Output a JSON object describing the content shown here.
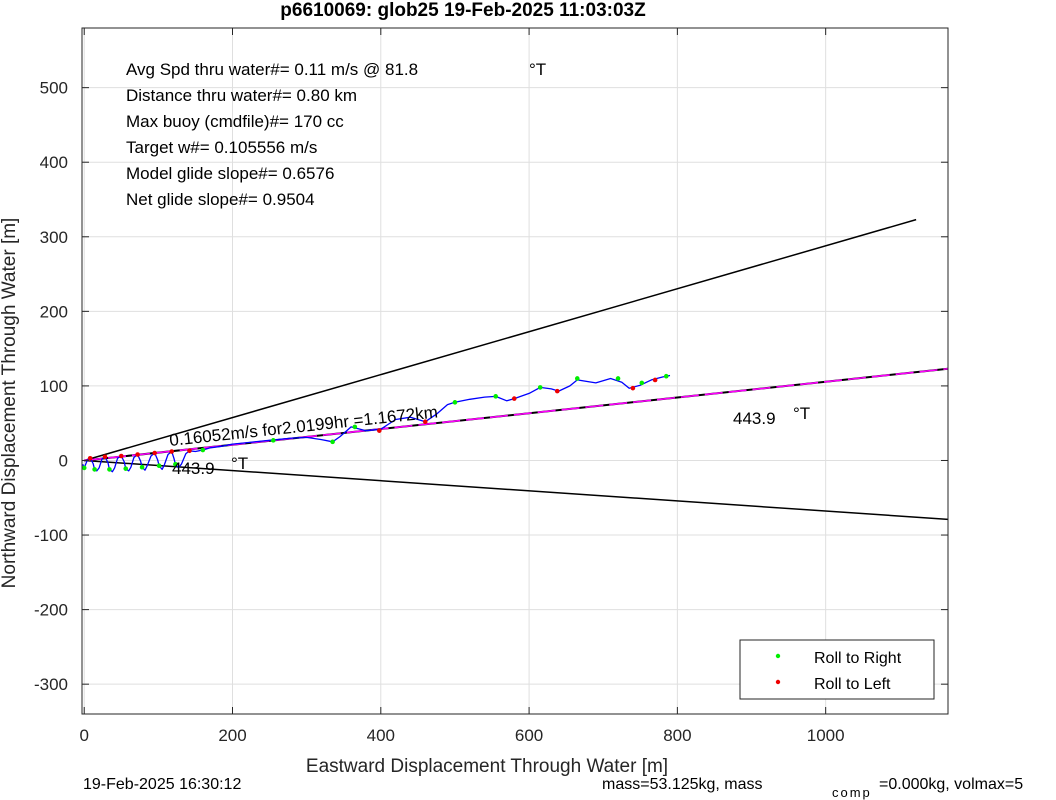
{
  "chart_data": {
    "type": "line",
    "title": "p6610069: glob25 19-Feb-2025 11:03:03Z",
    "xlabel": "Eastward Displacement Through Water [m]",
    "ylabel": "Northward Displacement Through Water [m]",
    "xlim": [
      -3,
      1165
    ],
    "ylim": [
      -340,
      580
    ],
    "xticks": [
      0,
      200,
      400,
      600,
      800,
      1000
    ],
    "yticks": [
      -300,
      -200,
      -100,
      0,
      100,
      200,
      300,
      400,
      500
    ],
    "xtick_labels": [
      "0",
      "200",
      "400",
      "600",
      "800",
      "1000"
    ],
    "ytick_labels": [
      "-300",
      "-200",
      "-100",
      "0",
      "100",
      "200",
      "300",
      "400",
      "500"
    ],
    "grid": true,
    "legend_position": "bottom-right",
    "legend": [
      {
        "label": "Roll to Right",
        "color": "#00ee00"
      },
      {
        "label": "Roll to Left",
        "color": "#ee0000"
      }
    ],
    "stats": [
      "Avg Spd thru water#=  0.11 m/s @  81.8",
      "Distance thru water#=  0.80 km",
      "Max buoy (cmdfile)#= 170 cc",
      "Target w#= 0.105556 m/s",
      "Model glide slope#= 0.6576",
      "Net glide slope#= 0.9504"
    ],
    "stats_unit": "°T",
    "annotations": {
      "current": "0.16052m/s for2.0199hr =1.1672km",
      "heading_right": "443.9",
      "heading_left": "443.9",
      "deg_unit": "°T"
    },
    "lines": {
      "upper_bound": [
        [
          0,
          0
        ],
        [
          1122,
          323
        ]
      ],
      "lower_bound": [
        [
          0,
          0
        ],
        [
          1165,
          -79
        ]
      ],
      "current_line": [
        [
          0,
          0
        ],
        [
          1165,
          123
        ]
      ]
    },
    "track": [
      [
        -2,
        -5
      ],
      [
        0,
        -10
      ],
      [
        4,
        0
      ],
      [
        8,
        3
      ],
      [
        12,
        -4
      ],
      [
        14,
        -12
      ],
      [
        17,
        -14
      ],
      [
        20,
        -10
      ],
      [
        24,
        2
      ],
      [
        28,
        5
      ],
      [
        32,
        -3
      ],
      [
        34,
        -12
      ],
      [
        38,
        -15
      ],
      [
        41,
        -10
      ],
      [
        45,
        3
      ],
      [
        50,
        6
      ],
      [
        54,
        -2
      ],
      [
        56,
        -11
      ],
      [
        60,
        -14
      ],
      [
        63,
        -9
      ],
      [
        67,
        4
      ],
      [
        72,
        8
      ],
      [
        76,
        -1
      ],
      [
        78,
        -9
      ],
      [
        82,
        -13
      ],
      [
        85,
        -7
      ],
      [
        90,
        6
      ],
      [
        95,
        10
      ],
      [
        99,
        1
      ],
      [
        101,
        -7
      ],
      [
        105,
        -12
      ],
      [
        108,
        -6
      ],
      [
        113,
        8
      ],
      [
        118,
        12
      ],
      [
        121,
        3
      ],
      [
        123,
        -5
      ],
      [
        127,
        -10
      ],
      [
        131,
        -5
      ],
      [
        137,
        9
      ],
      [
        142,
        13
      ],
      [
        150,
        12
      ],
      [
        160,
        14
      ],
      [
        170,
        17
      ],
      [
        185,
        19
      ],
      [
        200,
        22
      ],
      [
        220,
        24
      ],
      [
        250,
        27
      ],
      [
        280,
        30
      ],
      [
        300,
        31
      ],
      [
        320,
        28
      ],
      [
        335,
        25
      ],
      [
        345,
        32
      ],
      [
        360,
        45
      ],
      [
        380,
        40
      ],
      [
        400,
        42
      ],
      [
        420,
        55
      ],
      [
        440,
        58
      ],
      [
        460,
        52
      ],
      [
        475,
        62
      ],
      [
        490,
        75
      ],
      [
        500,
        78
      ],
      [
        520,
        82
      ],
      [
        540,
        85
      ],
      [
        555,
        86
      ],
      [
        570,
        80
      ],
      [
        580,
        83
      ],
      [
        600,
        90
      ],
      [
        615,
        98
      ],
      [
        630,
        96
      ],
      [
        640,
        93
      ],
      [
        655,
        100
      ],
      [
        665,
        108
      ],
      [
        690,
        104
      ],
      [
        710,
        110
      ],
      [
        725,
        105
      ],
      [
        735,
        97
      ],
      [
        750,
        101
      ],
      [
        765,
        108
      ],
      [
        780,
        112
      ],
      [
        790,
        114
      ]
    ],
    "roll_right": [
      [
        0,
        -10
      ],
      [
        14,
        -12
      ],
      [
        34,
        -12
      ],
      [
        56,
        -11
      ],
      [
        78,
        -9
      ],
      [
        101,
        -7
      ],
      [
        123,
        -5
      ],
      [
        160,
        14
      ],
      [
        255,
        27
      ],
      [
        335,
        25
      ],
      [
        365,
        45
      ],
      [
        500,
        78
      ],
      [
        555,
        86
      ],
      [
        615,
        98
      ],
      [
        665,
        110
      ],
      [
        720,
        110
      ],
      [
        752,
        104
      ],
      [
        785,
        113
      ]
    ],
    "roll_left": [
      [
        8,
        3
      ],
      [
        28,
        5
      ],
      [
        50,
        6
      ],
      [
        72,
        8
      ],
      [
        95,
        10
      ],
      [
        118,
        12
      ],
      [
        142,
        13
      ],
      [
        398,
        40
      ],
      [
        460,
        52
      ],
      [
        580,
        83
      ],
      [
        638,
        93
      ],
      [
        740,
        97
      ],
      [
        770,
        108
      ]
    ]
  },
  "footer": {
    "date": "19-Feb-2025 16:30:12",
    "mass": "mass=53.125kg, mass",
    "comp": "comp",
    "volmax": "=0.000kg, volmax=5"
  }
}
